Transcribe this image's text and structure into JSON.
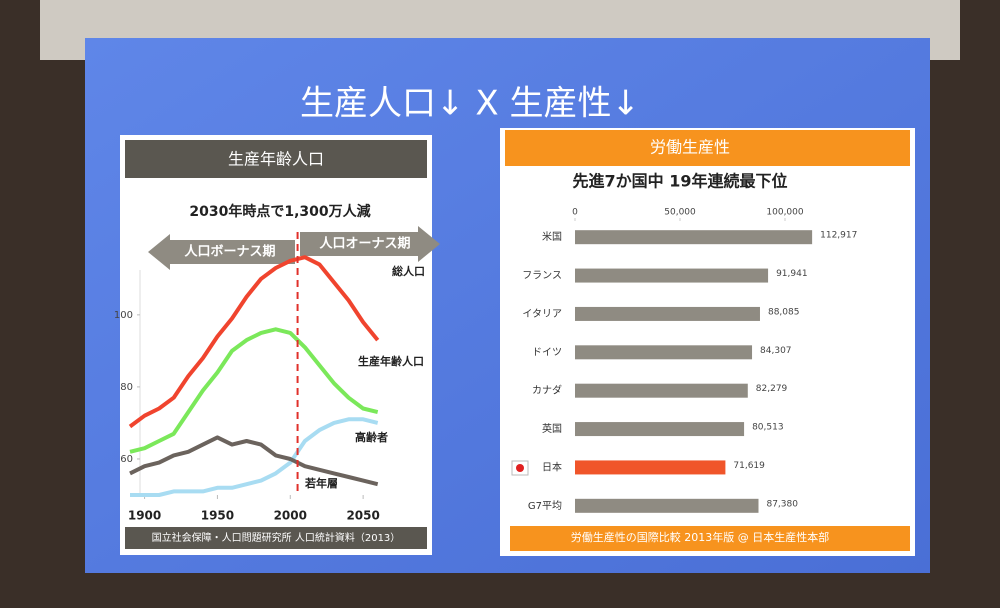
{
  "slide": {
    "title": "生産人口↓ X 生産性↓"
  },
  "chart_data": [
    {
      "type": "line",
      "title": "生産年齢人口",
      "subtitle": "2030年時点で1,300万人減",
      "annotations": [
        "人口ボーナス期",
        "人口オーナス期"
      ],
      "divider_x": 2005,
      "source": "国立社会保障・人口問題研究所 人口統計資料（2013）",
      "x": [
        1890,
        1900,
        1910,
        1920,
        1930,
        1940,
        1950,
        1960,
        1970,
        1980,
        1990,
        2000,
        2010,
        2020,
        2030,
        2040,
        2050,
        2060
      ],
      "series": [
        {
          "name": "総人口",
          "color": "#f0442e",
          "values": [
            69,
            72,
            74,
            77,
            83,
            88,
            94,
            99,
            105,
            110,
            113,
            115,
            116,
            114,
            109,
            104,
            98,
            93
          ]
        },
        {
          "name": "生産年齢人口",
          "color": "#7be85a",
          "values": [
            62,
            63,
            65,
            67,
            73,
            79,
            84,
            90,
            93,
            95,
            96,
            95,
            91,
            86,
            81,
            77,
            74,
            73
          ]
        },
        {
          "name": "高齢者",
          "color": "#a8dcf2",
          "values": [
            50,
            50,
            50,
            51,
            51,
            51,
            52,
            52,
            53,
            54,
            56,
            59,
            65,
            68,
            70,
            71,
            71,
            70
          ]
        },
        {
          "name": "若年層",
          "color": "#6b635d",
          "values": [
            56,
            58,
            59,
            61,
            62,
            64,
            66,
            64,
            65,
            64,
            61,
            60,
            58,
            57,
            56,
            55,
            54,
            53
          ]
        }
      ],
      "xlim": [
        1890,
        2065
      ],
      "xticks": [
        1900,
        1950,
        2000,
        2050
      ],
      "ylim": [
        50,
        118
      ],
      "yticks": [
        60,
        80,
        100
      ]
    },
    {
      "type": "bar",
      "title": "労働生産性",
      "subtitle": "先進7か国中 19年連続最下位",
      "source": "労働生産性の国際比較 2013年版 @ 日本生産性本部",
      "categories": [
        "米国",
        "フランス",
        "イタリア",
        "ドイツ",
        "カナダ",
        "英国",
        "日本",
        "G7平均"
      ],
      "values": [
        112917,
        91941,
        88085,
        84307,
        82279,
        80513,
        71619,
        87380
      ],
      "value_labels": [
        "112,917",
        "91,941",
        "88,085",
        "84,307",
        "82,279",
        "80,513",
        "71,619",
        "87,380"
      ],
      "colors": [
        "#8f8b82",
        "#8f8b82",
        "#8f8b82",
        "#8f8b82",
        "#8f8b82",
        "#8f8b82",
        "#f0552a",
        "#8f8b82"
      ],
      "xlim": [
        0,
        120000
      ],
      "xticks": [
        0,
        {
          "value": 50000,
          "label": "50,000"
        },
        {
          "value": 100000,
          "label": "100,000"
        }
      ]
    }
  ]
}
